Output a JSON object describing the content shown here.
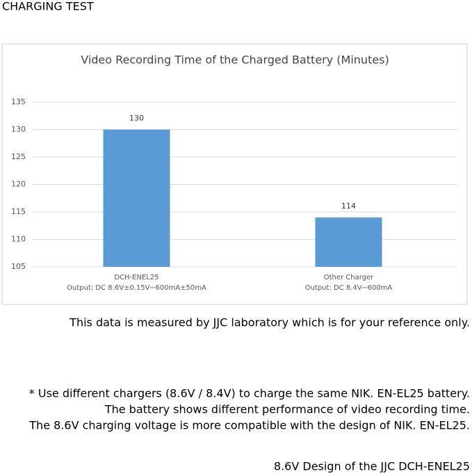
{
  "header": {
    "title": "CHARGING TEST"
  },
  "chart_data": {
    "type": "bar",
    "title": "Video Recording Time of the Charged Battery (Minutes)",
    "categories": [
      "DCH-ENEL25",
      "Other Charger"
    ],
    "category_details": [
      "Output: DC 8.6V±0.15V⎓600mA±50mA",
      "Output: DC 8.4V⎓600mA"
    ],
    "values": [
      130,
      114
    ],
    "color": "#5b9bd5",
    "ylim": [
      105,
      135
    ],
    "yticks": [
      105,
      110,
      115,
      120,
      125,
      130,
      135
    ],
    "grid": true
  },
  "notes": {
    "disclaimer": "This data is measured by JJC laboratory which is for your reference only.",
    "lines": [
      "* Use different chargers (8.6V / 8.4V) to charge the same NIK. EN-EL25 battery.",
      "The battery shows different performance of video recording time.",
      "The 8.6V charging voltage is more compatible with the design of NIK. EN-EL25."
    ],
    "footer": "8.6V Design of the JJC DCH-ENEL25"
  }
}
